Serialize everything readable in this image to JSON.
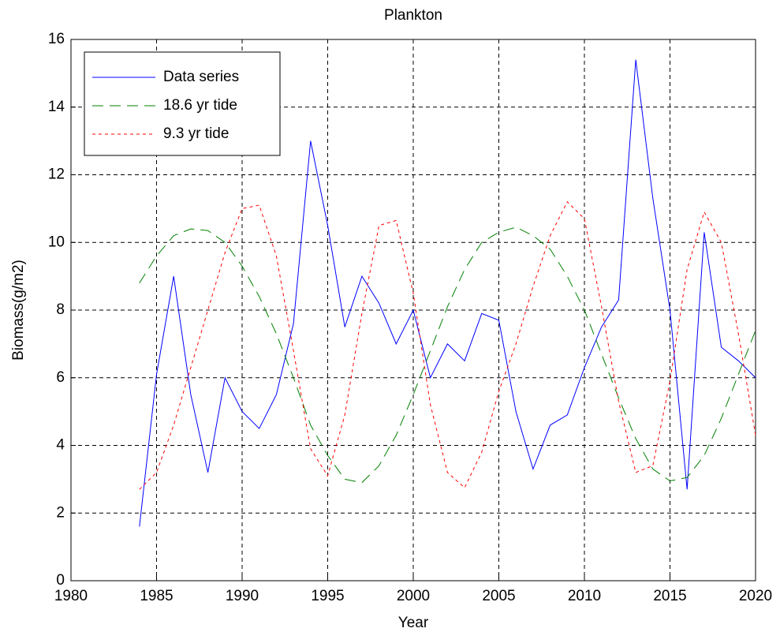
{
  "chart_data": {
    "type": "line",
    "title": "Plankton",
    "x_label": "Year",
    "y_label": "Biomass(g/m2)",
    "x": [
      1984,
      1985,
      1986,
      1987,
      1988,
      1989,
      1990,
      1991,
      1992,
      1993,
      1994,
      1995,
      1996,
      1997,
      1998,
      1999,
      2000,
      2001,
      2002,
      2003,
      2004,
      2005,
      2006,
      2007,
      2008,
      2009,
      2010,
      2011,
      2012,
      2013,
      2014,
      2015,
      2016,
      2017,
      2018,
      2019,
      2020
    ],
    "series": [
      {
        "name": "Data series",
        "color": "#0000ff",
        "linestyle": "solid",
        "values": [
          1.6,
          6.1,
          9.0,
          5.5,
          3.2,
          6.0,
          5.0,
          4.5,
          5.5,
          7.6,
          13.0,
          10.5,
          7.5,
          9.0,
          8.2,
          7.0,
          8.0,
          6.0,
          7.0,
          6.5,
          7.9,
          7.7,
          5.0,
          3.3,
          4.6,
          4.9,
          6.3,
          7.5,
          8.3,
          15.4,
          11.3,
          8.0,
          2.7,
          10.3,
          6.9,
          6.5,
          6.0
        ]
      },
      {
        "name": "18.6 yr tide",
        "color": "#008000",
        "linestyle": "dashed",
        "values": [
          8.8,
          9.6,
          10.2,
          10.4,
          10.35,
          10.0,
          9.3,
          8.4,
          7.3,
          6.0,
          4.6,
          3.7,
          3.0,
          2.9,
          3.4,
          4.3,
          5.5,
          6.8,
          8.1,
          9.2,
          10.0,
          10.3,
          10.45,
          10.2,
          9.8,
          9.0,
          8.0,
          6.7,
          5.4,
          4.2,
          3.3,
          2.95,
          3.05,
          3.7,
          4.8,
          6.1,
          7.4
        ]
      },
      {
        "name": "9.3 yr tide",
        "color": "#ff0000",
        "linestyle": "dotted",
        "values": [
          2.7,
          3.2,
          4.6,
          6.3,
          8.0,
          9.7,
          11.0,
          11.1,
          9.6,
          6.8,
          3.9,
          3.1,
          4.9,
          7.9,
          10.5,
          10.65,
          8.5,
          5.2,
          3.2,
          2.75,
          3.8,
          5.6,
          7.0,
          8.7,
          10.2,
          11.2,
          10.7,
          8.1,
          5.3,
          3.2,
          3.4,
          5.9,
          9.2,
          10.9,
          10.0,
          7.3,
          4.3
        ]
      }
    ],
    "xlim": [
      1980,
      2020
    ],
    "xticks": [
      1980,
      1985,
      1990,
      1995,
      2000,
      2005,
      2010,
      2015,
      2020
    ],
    "ylim": [
      0,
      16
    ],
    "yticks": [
      0,
      2,
      4,
      6,
      8,
      10,
      12,
      14,
      16
    ],
    "grid": true,
    "legend": "upper-left"
  }
}
